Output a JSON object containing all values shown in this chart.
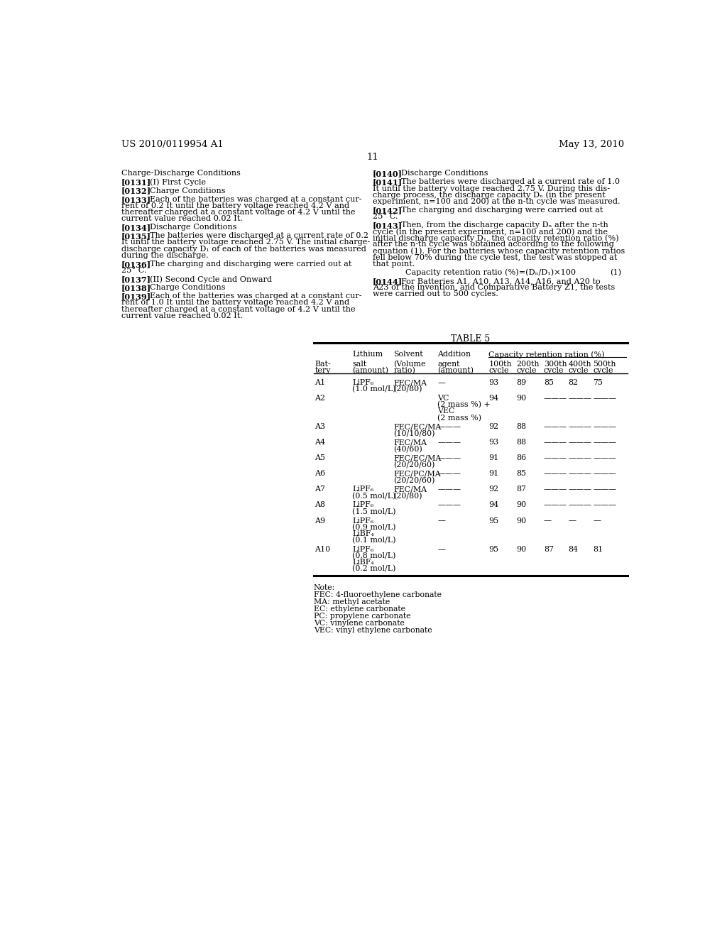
{
  "bg_color": "#ffffff",
  "header_left": "US 2010/0119954 A1",
  "header_right": "May 13, 2010",
  "page_number": "11",
  "left_paragraphs": [
    {
      "tag": "",
      "indent": false,
      "lines": [
        "Charge-Discharge Conditions"
      ]
    },
    {
      "tag": "[0131]",
      "indent": true,
      "lines": [
        "(I) First Cycle"
      ]
    },
    {
      "tag": "[0132]",
      "indent": true,
      "lines": [
        "Charge Conditions"
      ]
    },
    {
      "tag": "[0133]",
      "indent": true,
      "lines": [
        "Each of the batteries was charged at a constant cur-",
        "rent of 0.2 It until the battery voltage reached 4.2 V and",
        "thereafter charged at a constant voltage of 4.2 V until the",
        "current value reached 0.02 It."
      ]
    },
    {
      "tag": "[0134]",
      "indent": true,
      "lines": [
        "Discharge Conditions"
      ]
    },
    {
      "tag": "[0135]",
      "indent": true,
      "lines": [
        "The batteries were discharged at a current rate of 0.2",
        "It until the battery voltage reached 2.75 V. The initial charge-",
        "discharge capacity D₁ of each of the batteries was measured",
        "during the discharge."
      ]
    },
    {
      "tag": "[0136]",
      "indent": true,
      "lines": [
        "The charging and discharging were carried out at",
        "25° C."
      ]
    },
    {
      "tag": "[0137]",
      "indent": true,
      "lines": [
        "(II) Second Cycle and Onward"
      ]
    },
    {
      "tag": "[0138]",
      "indent": true,
      "lines": [
        "Charge Conditions"
      ]
    },
    {
      "tag": "[0139]",
      "indent": true,
      "lines": [
        "Each of the batteries was charged at a constant cur-",
        "rent of 1.0 It until the battery voltage reached 4.2 V and",
        "thereafter charged at a constant voltage of 4.2 V until the",
        "current value reached 0.02 It."
      ]
    }
  ],
  "right_paragraphs": [
    {
      "tag": "[0140]",
      "indent": true,
      "lines": [
        "Discharge Conditions"
      ]
    },
    {
      "tag": "[0141]",
      "indent": true,
      "lines": [
        "The batteries were discharged at a current rate of 1.0",
        "It until the battery voltage reached 2.75 V. During this dis-",
        "charge process, the discharge capacity Dₙ (in the present",
        "experiment, n=100 and 200) at the n-th cycle was measured."
      ]
    },
    {
      "tag": "[0142]",
      "indent": true,
      "lines": [
        "The charging and discharging were carried out at",
        "25° C."
      ]
    },
    {
      "tag": "[0143]",
      "indent": true,
      "lines": [
        "Then, from the discharge capacity Dₙ after the n-th",
        "cycle (in the present experiment, n=100 and 200) and the",
        "initial discharge capacity D₁, the capacity retention ratio (%)",
        "after the n-th cycle was obtained according to the following",
        "equation (1). For the batteries whose capacity retention ratios",
        "fell below 70% during the cycle test, the test was stopped at",
        "that point."
      ]
    },
    {
      "tag": "eq",
      "indent": false,
      "lines": [
        "Capacity retention ratio (%)=(Dₙ/D₁)×100",
        "(1)"
      ]
    },
    {
      "tag": "[0144]",
      "indent": true,
      "lines": [
        "For Batteries A1, A10, A13, A14, A16, and A20 to",
        "A23 of the invention, and Comparative Battery Z1, the tests",
        "were carried out to 500 cycles."
      ]
    }
  ],
  "table_title": "TABLE 5",
  "col1_header": "Lithium",
  "col2_header": "Solvent",
  "col3_header": "Addition",
  "col4_header": "Capacity retention ration (%)",
  "subheaders": [
    "Bat-\ntery",
    "salt\n(amount)",
    "(Volume\nratio)",
    "agent\n(amount)",
    "100th\ncycle",
    "200th\ncycle",
    "300th\ncycle",
    "400th\ncycle",
    "500th\ncycle"
  ],
  "table_rows": [
    {
      "battery": "A1",
      "salt": "LiPF₆\n(1.0 mol/L)",
      "solvent": "FEC/MA\n(20/80)",
      "addition": "—",
      "c100": "93",
      "c200": "89",
      "c300": "85",
      "c400": "82",
      "c500": "75"
    },
    {
      "battery": "A2",
      "salt": "",
      "solvent": "",
      "addition": "VC\n(2 mass %) +\nVEC\n(2 mass %)",
      "c100": "94",
      "c200": "90",
      "c300": "———",
      "c400": "———",
      "c500": "———"
    },
    {
      "battery": "A3",
      "salt": "",
      "solvent": "FEC/EC/MA\n(10/10/80)",
      "addition": "———",
      "c100": "92",
      "c200": "88",
      "c300": "———",
      "c400": "———",
      "c500": "———"
    },
    {
      "battery": "A4",
      "salt": "",
      "solvent": "FEC/MA\n(40/60)",
      "addition": "———",
      "c100": "93",
      "c200": "88",
      "c300": "———",
      "c400": "———",
      "c500": "———"
    },
    {
      "battery": "A5",
      "salt": "",
      "solvent": "FEC/EC/MA\n(20/20/60)",
      "addition": "———",
      "c100": "91",
      "c200": "86",
      "c300": "———",
      "c400": "———",
      "c500": "———"
    },
    {
      "battery": "A6",
      "salt": "",
      "solvent": "FEC/PC/MA\n(20/20/60)",
      "addition": "———",
      "c100": "91",
      "c200": "85",
      "c300": "———",
      "c400": "———",
      "c500": "———"
    },
    {
      "battery": "A7",
      "salt": "LiPF₆\n(0.5 mol/L)",
      "solvent": "FEC/MA\n(20/80)",
      "addition": "———",
      "c100": "92",
      "c200": "87",
      "c300": "———",
      "c400": "———",
      "c500": "———"
    },
    {
      "battery": "A8",
      "salt": "LiPF₆\n(1.5 mol/L)",
      "solvent": "",
      "addition": "———",
      "c100": "94",
      "c200": "90",
      "c300": "———",
      "c400": "———",
      "c500": "———"
    },
    {
      "battery": "A9",
      "salt": "LiPF₆\n(0.9 mol/L)\nLiBF₄\n(0.1 mol/L)",
      "solvent": "",
      "addition": "—",
      "c100": "95",
      "c200": "90",
      "c300": "—",
      "c400": "—",
      "c500": "—"
    },
    {
      "battery": "A10",
      "salt": "LiPF₆\n(0.8 mol/L)\nLiBF₄\n(0.2 mol/L)",
      "solvent": "",
      "addition": "—",
      "c100": "95",
      "c200": "90",
      "c300": "87",
      "c400": "84",
      "c500": "81"
    }
  ],
  "notes": [
    "Note:",
    "FEC: 4-fluoroethylene carbonate",
    "MA: methyl acetate",
    "EC: ethylene carbonate",
    "PC: propylene carbonate",
    "VC: vinylene carbonate",
    "VEC: vinyl ethylene carbonate"
  ]
}
